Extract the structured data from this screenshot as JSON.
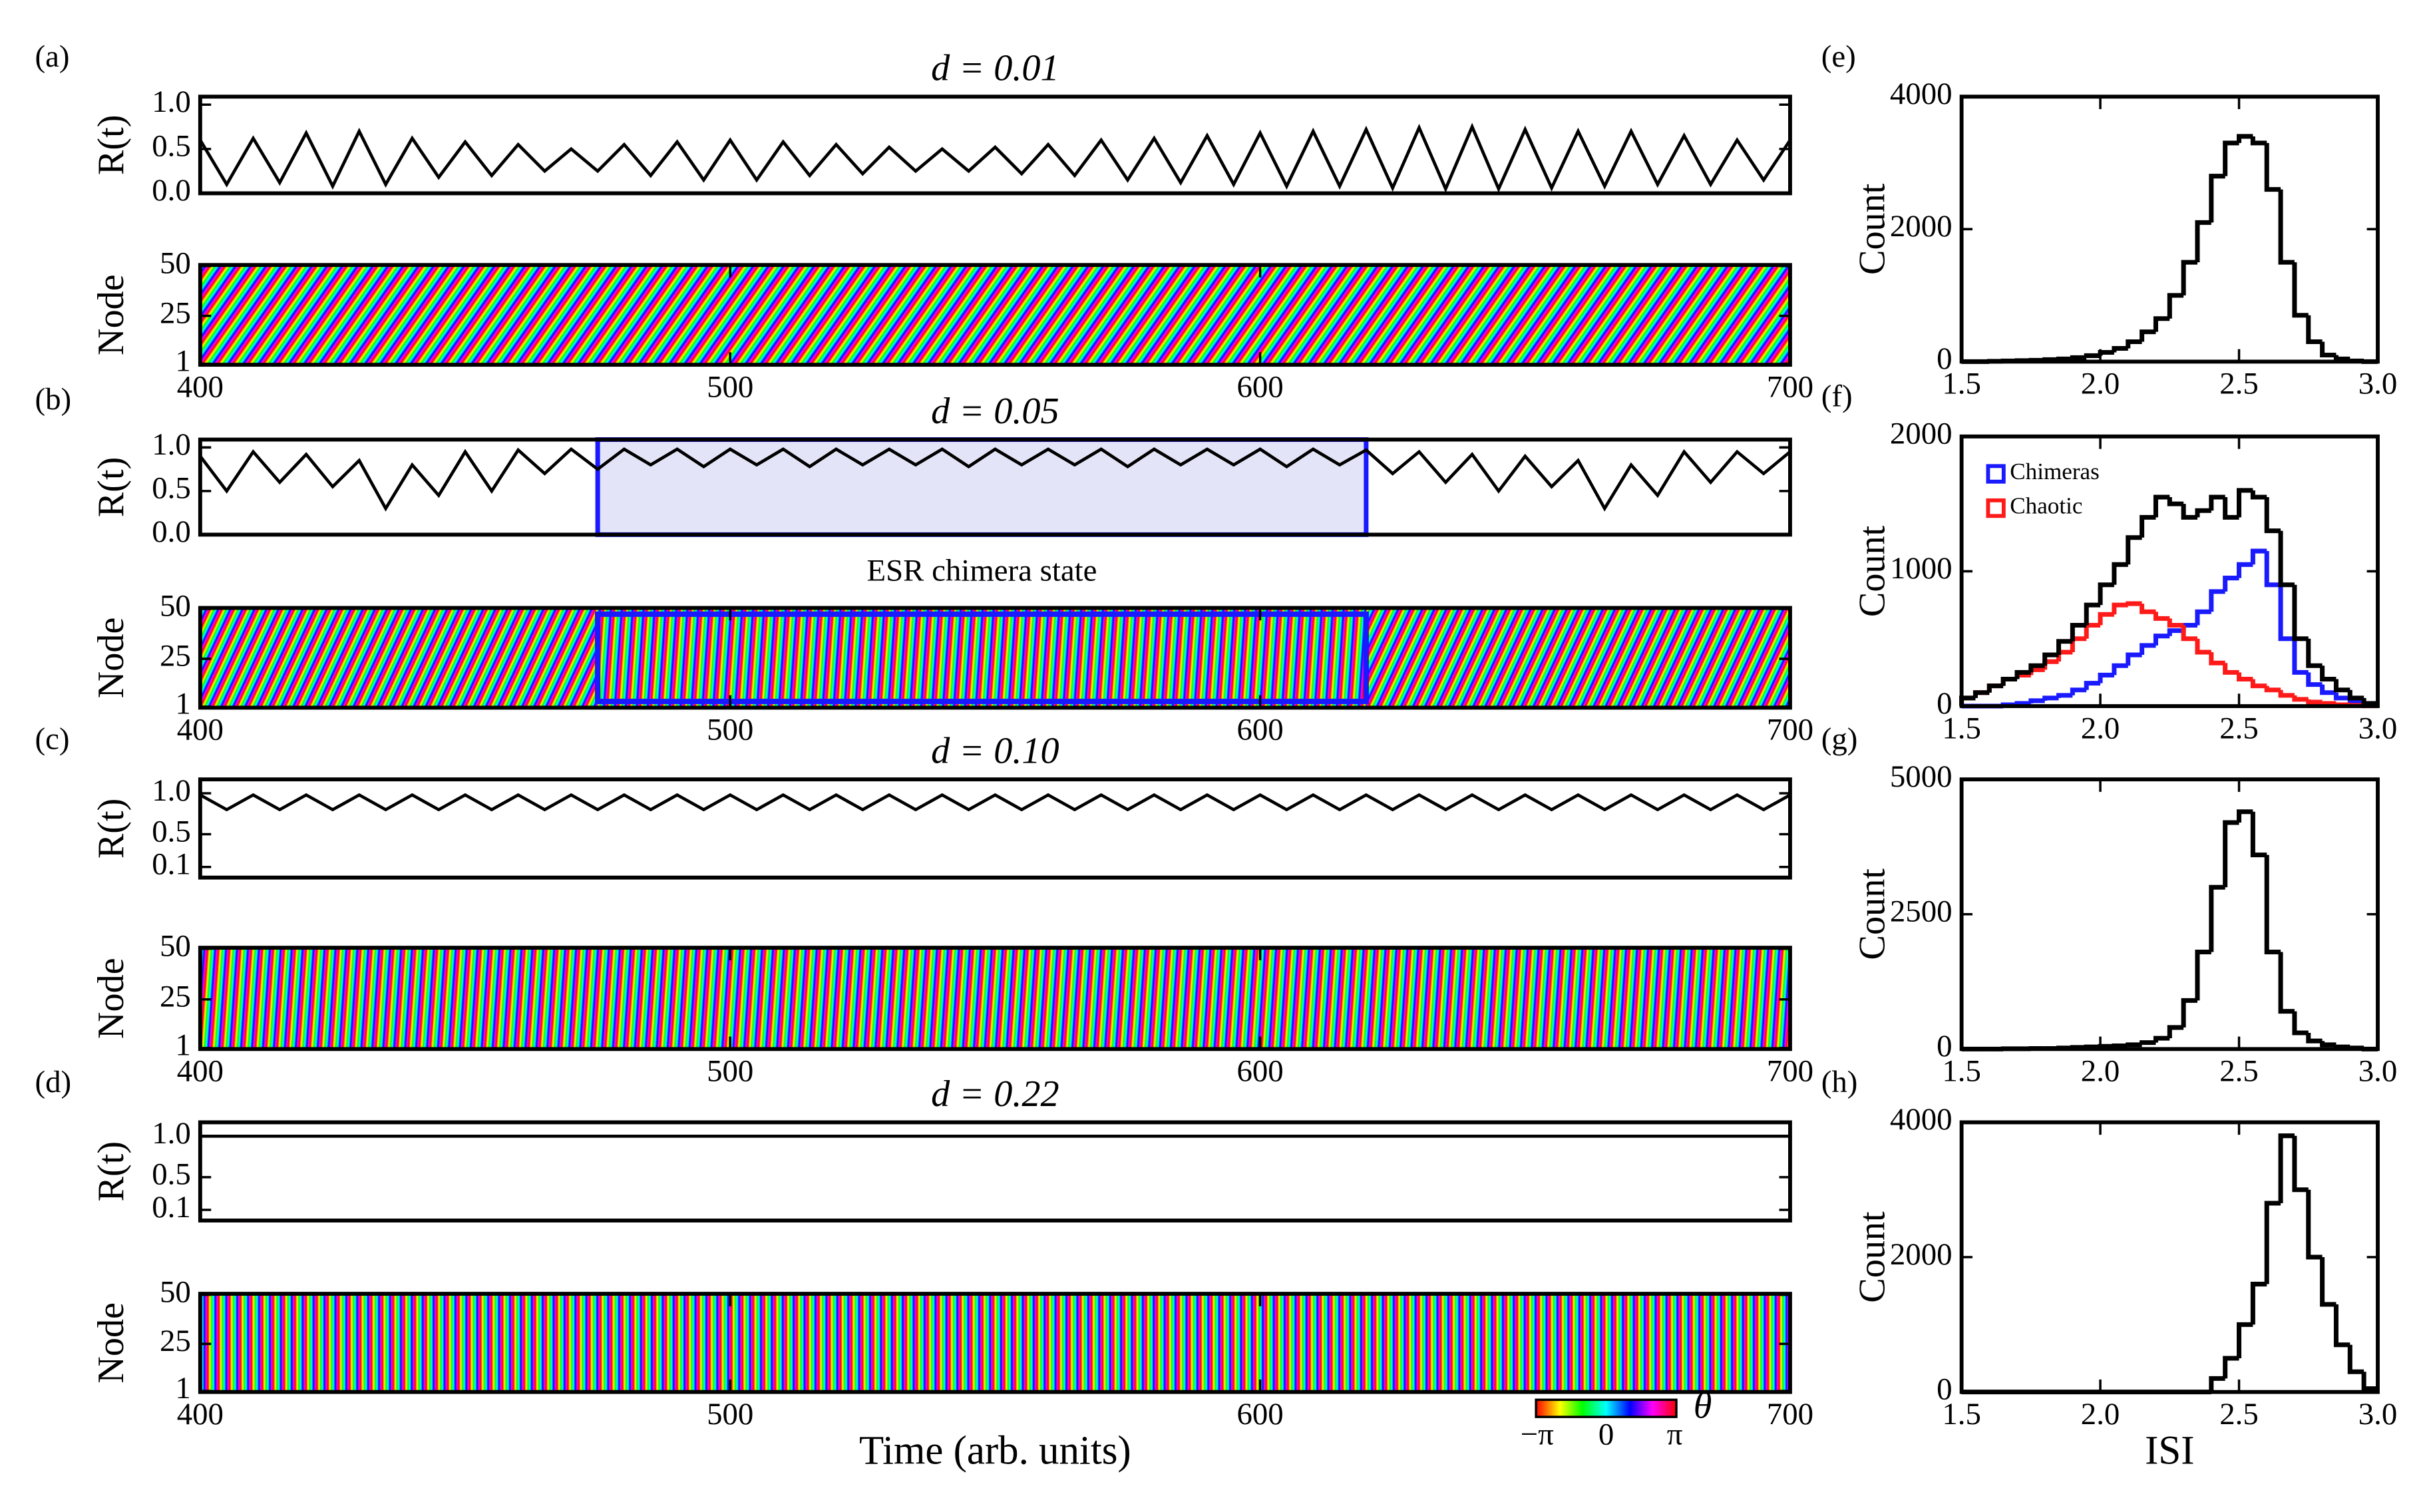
{
  "chart_data": [
    {
      "type": "line",
      "label": "(a)",
      "title": "d = 0.01",
      "ylabel": "R(t)",
      "xlim": [
        400,
        700
      ],
      "ylim": [
        0,
        1.09
      ],
      "yticks": [
        {
          "value": 0,
          "label": "0.0"
        },
        0.5,
        {
          "value": 1,
          "label": "1.0"
        }
      ],
      "series": [
        {
          "color": "#000000",
          "x": [
            400,
            405,
            410,
            415,
            420,
            425,
            430,
            435,
            440,
            445,
            450,
            455,
            460,
            465,
            470,
            475,
            480,
            485,
            490,
            495,
            500,
            505,
            510,
            515,
            520,
            525,
            530,
            535,
            540,
            545,
            550,
            555,
            560,
            565,
            570,
            575,
            580,
            585,
            590,
            595,
            600,
            605,
            610,
            615,
            620,
            625,
            630,
            635,
            640,
            645,
            650,
            655,
            660,
            665,
            670,
            675,
            680,
            685,
            690,
            695,
            700
          ],
          "values": [
            0.6,
            0.1,
            0.62,
            0.12,
            0.68,
            0.08,
            0.7,
            0.1,
            0.62,
            0.18,
            0.58,
            0.2,
            0.55,
            0.25,
            0.5,
            0.25,
            0.55,
            0.2,
            0.58,
            0.15,
            0.6,
            0.15,
            0.58,
            0.2,
            0.55,
            0.22,
            0.52,
            0.25,
            0.5,
            0.25,
            0.52,
            0.22,
            0.55,
            0.2,
            0.6,
            0.15,
            0.62,
            0.12,
            0.65,
            0.1,
            0.68,
            0.08,
            0.7,
            0.08,
            0.72,
            0.06,
            0.74,
            0.05,
            0.75,
            0.05,
            0.72,
            0.06,
            0.7,
            0.08,
            0.7,
            0.1,
            0.65,
            0.1,
            0.6,
            0.15,
            0.6
          ]
        }
      ]
    },
    {
      "type": "heatmap",
      "ylabel": "Node",
      "xlim": [
        400,
        700
      ],
      "xticks": [
        400,
        500,
        600,
        700
      ],
      "ylim": [
        0.5,
        50.5
      ],
      "yticks": [
        1,
        25,
        50
      ]
    },
    {
      "type": "line",
      "label": "(b)",
      "title": "d = 0.05",
      "ylabel": "R(t)",
      "xlim": [
        400,
        700
      ],
      "ylim": [
        0,
        1.09
      ],
      "yticks": [
        {
          "value": 0,
          "label": "0.0"
        },
        0.5,
        {
          "value": 1,
          "label": "1.0"
        }
      ],
      "highlight": {
        "x": [
          475,
          620
        ],
        "label": "ESR chimera state",
        "color": "#1a1aff"
      },
      "series": [
        {
          "color": "#000000",
          "x": [
            400,
            405,
            410,
            415,
            420,
            425,
            430,
            435,
            440,
            445,
            450,
            455,
            460,
            465,
            470,
            475,
            480,
            485,
            490,
            495,
            500,
            505,
            510,
            515,
            520,
            525,
            530,
            535,
            540,
            545,
            550,
            555,
            560,
            565,
            570,
            575,
            580,
            585,
            590,
            595,
            600,
            605,
            610,
            615,
            620,
            625,
            630,
            635,
            640,
            645,
            650,
            655,
            660,
            665,
            670,
            675,
            680,
            685,
            690,
            695,
            700
          ],
          "values": [
            0.9,
            0.5,
            0.95,
            0.6,
            0.92,
            0.55,
            0.85,
            0.3,
            0.8,
            0.45,
            0.95,
            0.5,
            0.97,
            0.7,
            0.98,
            0.75,
            0.98,
            0.8,
            0.98,
            0.78,
            0.98,
            0.8,
            0.98,
            0.78,
            0.98,
            0.8,
            0.98,
            0.8,
            0.98,
            0.78,
            0.98,
            0.8,
            0.98,
            0.8,
            0.98,
            0.78,
            0.98,
            0.8,
            0.98,
            0.8,
            0.98,
            0.78,
            0.98,
            0.8,
            0.97,
            0.7,
            0.95,
            0.6,
            0.92,
            0.5,
            0.9,
            0.55,
            0.85,
            0.3,
            0.8,
            0.45,
            0.95,
            0.6,
            0.95,
            0.7,
            0.95
          ]
        }
      ]
    },
    {
      "type": "heatmap",
      "ylabel": "Node",
      "xlim": [
        400,
        700
      ],
      "xticks": [
        400,
        500,
        600,
        700
      ],
      "ylim": [
        0.5,
        50.5
      ],
      "yticks": [
        1,
        25,
        50
      ],
      "highlight": {
        "x": [
          475,
          620
        ],
        "color": "#1a1aff"
      }
    },
    {
      "type": "line",
      "label": "(c)",
      "title": "d = 0.10",
      "ylabel": "R(t)",
      "xlim": [
        400,
        700
      ],
      "ylim": [
        -0.03,
        1.17
      ],
      "yticks": [
        0.1,
        0.5,
        {
          "value": 1,
          "label": "1.0"
        }
      ],
      "series": [
        {
          "color": "#000000",
          "x": [
            400,
            405,
            410,
            415,
            420,
            425,
            430,
            435,
            440,
            445,
            450,
            455,
            460,
            465,
            470,
            475,
            480,
            485,
            490,
            495,
            500,
            505,
            510,
            515,
            520,
            525,
            530,
            535,
            540,
            545,
            550,
            555,
            560,
            565,
            570,
            575,
            580,
            585,
            590,
            595,
            600,
            605,
            610,
            615,
            620,
            625,
            630,
            635,
            640,
            645,
            650,
            655,
            660,
            665,
            670,
            675,
            680,
            685,
            690,
            695,
            700
          ],
          "values": [
            0.98,
            0.8,
            0.98,
            0.8,
            0.98,
            0.8,
            0.98,
            0.8,
            0.98,
            0.8,
            0.98,
            0.8,
            0.98,
            0.8,
            0.98,
            0.8,
            0.98,
            0.8,
            0.98,
            0.8,
            0.98,
            0.8,
            0.98,
            0.8,
            0.98,
            0.8,
            0.98,
            0.8,
            0.98,
            0.8,
            0.98,
            0.8,
            0.98,
            0.8,
            0.98,
            0.8,
            0.98,
            0.8,
            0.98,
            0.8,
            0.98,
            0.8,
            0.98,
            0.8,
            0.98,
            0.8,
            0.98,
            0.8,
            0.98,
            0.8,
            0.98,
            0.8,
            0.98,
            0.8,
            0.98,
            0.8,
            0.98,
            0.8,
            0.98,
            0.8,
            0.98
          ]
        }
      ]
    },
    {
      "type": "heatmap",
      "ylabel": "Node",
      "xlim": [
        400,
        700
      ],
      "xticks": [
        400,
        500,
        600,
        700
      ],
      "ylim": [
        0.5,
        50.5
      ],
      "yticks": [
        1,
        25,
        50
      ]
    },
    {
      "type": "line",
      "label": "(d)",
      "title": "d = 0.22",
      "ylabel": "R(t)",
      "xlim": [
        400,
        700
      ],
      "ylim": [
        -0.03,
        1.17
      ],
      "yticks": [
        0.1,
        0.5,
        {
          "value": 1,
          "label": "1.0"
        }
      ],
      "series": [
        {
          "color": "#000000",
          "x": [
            400,
            700
          ],
          "values": [
            1,
            1
          ]
        }
      ]
    },
    {
      "type": "heatmap",
      "ylabel": "Node",
      "xlabel": "Time (arb. units)",
      "xlim": [
        400,
        700
      ],
      "xticks": [
        400,
        500,
        600,
        700
      ],
      "ylim": [
        0.5,
        50.5
      ],
      "yticks": [
        1,
        25,
        50
      ]
    },
    {
      "type": "histogram",
      "label": "(e)",
      "ylabel": "Count",
      "xlim": [
        1.5,
        3
      ],
      "ylim": [
        0,
        4000
      ],
      "yticks": [
        0,
        2000,
        4000
      ],
      "xticks": [
        1.5,
        {
          "value": 2,
          "label": "2.0"
        },
        2.5,
        {
          "value": 3,
          "label": "3.0"
        }
      ],
      "bins": [
        1.5,
        1.55,
        1.6,
        1.65,
        1.7,
        1.75,
        1.8,
        1.85,
        1.9,
        1.95,
        2,
        2.05,
        2.1,
        2.15,
        2.2,
        2.25,
        2.3,
        2.35,
        2.4,
        2.45,
        2.5,
        2.55,
        2.6,
        2.65,
        2.7,
        2.75,
        2.8,
        2.85,
        2.9,
        2.95,
        3
      ],
      "color": "#000000",
      "values": [
        0,
        0,
        5,
        10,
        15,
        20,
        30,
        40,
        60,
        90,
        140,
        200,
        300,
        450,
        650,
        1000,
        1500,
        2100,
        2800,
        3300,
        3400,
        3300,
        2600,
        1500,
        700,
        300,
        100,
        40,
        10,
        0
      ]
    },
    {
      "type": "histogram",
      "label": "(f)",
      "ylabel": "Count",
      "xlim": [
        1.5,
        3
      ],
      "ylim": [
        0,
        2000
      ],
      "yticks": [
        0,
        1000,
        2000
      ],
      "xticks": [
        1.5,
        {
          "value": 2,
          "label": "2.0"
        },
        2.5,
        {
          "value": 3,
          "label": "3.0"
        }
      ],
      "bins": [
        1.5,
        1.55,
        1.6,
        1.65,
        1.7,
        1.75,
        1.8,
        1.85,
        1.9,
        1.95,
        2,
        2.05,
        2.1,
        2.15,
        2.2,
        2.25,
        2.3,
        2.35,
        2.4,
        2.45,
        2.5,
        2.55,
        2.6,
        2.65,
        2.7,
        2.75,
        2.8,
        2.85,
        2.9,
        2.95,
        3
      ],
      "color": "#000000",
      "values": [
        60,
        100,
        150,
        200,
        250,
        300,
        380,
        480,
        600,
        750,
        900,
        1050,
        1250,
        1400,
        1550,
        1500,
        1400,
        1450,
        1550,
        1400,
        1600,
        1550,
        1300,
        900,
        500,
        300,
        200,
        120,
        60,
        20
      ],
      "series": [
        {
          "name": "Chimeras",
          "color": "#1a1aff",
          "values": [
            0,
            0,
            0,
            10,
            20,
            40,
            60,
            80,
            120,
            170,
            230,
            300,
            380,
            450,
            520,
            560,
            600,
            700,
            850,
            950,
            1050,
            1150,
            900,
            500,
            250,
            160,
            100,
            60,
            30,
            10
          ]
        },
        {
          "name": "Chaotic",
          "color": "#ff1a1a",
          "values": [
            60,
            100,
            150,
            200,
            230,
            270,
            330,
            400,
            500,
            600,
            680,
            750,
            760,
            700,
            650,
            600,
            500,
            400,
            320,
            250,
            200,
            150,
            120,
            80,
            50,
            30,
            20,
            10,
            5,
            2
          ]
        }
      ]
    },
    {
      "type": "histogram",
      "label": "(g)",
      "ylabel": "Count",
      "xlim": [
        1.5,
        3
      ],
      "ylim": [
        0,
        5000
      ],
      "yticks": [
        0,
        2500,
        5000
      ],
      "xticks": [
        1.5,
        {
          "value": 2,
          "label": "2.0"
        },
        2.5,
        {
          "value": 3,
          "label": "3.0"
        }
      ],
      "bins": [
        1.5,
        1.55,
        1.6,
        1.65,
        1.7,
        1.75,
        1.8,
        1.85,
        1.9,
        1.95,
        2,
        2.05,
        2.1,
        2.15,
        2.2,
        2.25,
        2.3,
        2.35,
        2.4,
        2.45,
        2.5,
        2.55,
        2.6,
        2.65,
        2.7,
        2.75,
        2.8,
        2.85,
        2.9,
        2.95,
        3
      ],
      "color": "#000000",
      "values": [
        0,
        0,
        0,
        5,
        5,
        10,
        10,
        20,
        30,
        40,
        50,
        60,
        80,
        120,
        200,
        400,
        900,
        1800,
        3000,
        4200,
        4400,
        3600,
        1800,
        700,
        300,
        150,
        80,
        40,
        20,
        0
      ]
    },
    {
      "type": "histogram",
      "label": "(h)",
      "ylabel": "Count",
      "xlabel": "ISI",
      "xlim": [
        1.5,
        3
      ],
      "ylim": [
        0,
        4000
      ],
      "yticks": [
        0,
        2000,
        4000
      ],
      "xticks": [
        1.5,
        {
          "value": 2,
          "label": "2.0"
        },
        2.5,
        {
          "value": 3,
          "label": "3.0"
        }
      ],
      "bins": [
        1.5,
        1.55,
        1.6,
        1.65,
        1.7,
        1.75,
        1.8,
        1.85,
        1.9,
        1.95,
        2,
        2.05,
        2.1,
        2.15,
        2.2,
        2.25,
        2.3,
        2.35,
        2.4,
        2.45,
        2.5,
        2.55,
        2.6,
        2.65,
        2.7,
        2.75,
        2.8,
        2.85,
        2.9,
        2.95,
        3
      ],
      "color": "#000000",
      "values": [
        0,
        0,
        0,
        0,
        0,
        0,
        0,
        0,
        0,
        0,
        0,
        0,
        0,
        0,
        0,
        0,
        0,
        0,
        200,
        500,
        1000,
        1600,
        2800,
        3800,
        3000,
        2000,
        1300,
        700,
        300,
        50
      ]
    }
  ],
  "colorbar": {
    "ticks": [
      "−π",
      "0",
      "π"
    ],
    "label": "θ"
  }
}
